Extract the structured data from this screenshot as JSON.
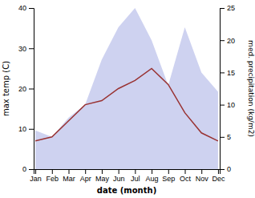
{
  "chart_data": {
    "type": "line",
    "categories": [
      "Jan",
      "Feb",
      "Mar",
      "Apr",
      "May",
      "Jun",
      "Jul",
      "Aug",
      "Sep",
      "Oct",
      "Nov",
      "Dec"
    ],
    "xlabel": "date (month)",
    "ylabel": "max temp (C)",
    "y2label": "med. precipitation (kg/m2)",
    "ylim": [
      0,
      40
    ],
    "yticks": [
      0,
      10,
      20,
      30,
      40
    ],
    "y2lim": [
      0,
      25
    ],
    "y2ticks": [
      0,
      5,
      10,
      15,
      20,
      25
    ],
    "series": [
      {
        "type": "area",
        "axis": "y2",
        "color": "#c5caed",
        "values": [
          6,
          5,
          8,
          10,
          17,
          22,
          25,
          20,
          13,
          22,
          15,
          12
        ]
      },
      {
        "type": "line",
        "color": "#993333",
        "values": [
          7,
          8,
          12,
          16,
          17,
          20,
          22,
          25,
          21,
          14,
          9,
          7
        ]
      }
    ]
  }
}
